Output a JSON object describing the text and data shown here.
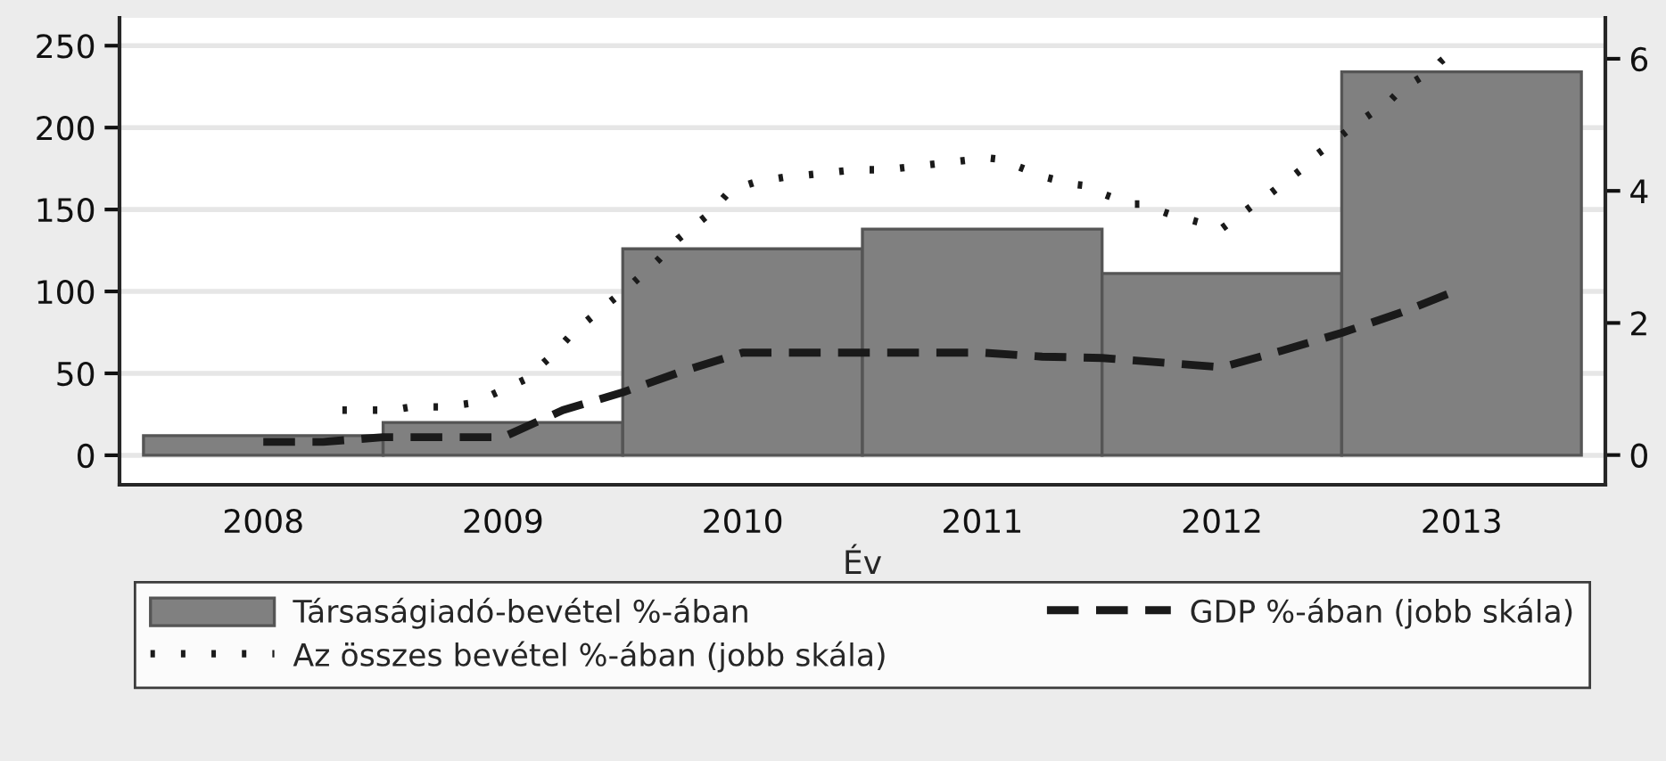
{
  "chart_data": {
    "type": "bar",
    "xlabel": "Év",
    "x": [
      2008,
      2009,
      2010,
      2011,
      2012,
      2013
    ],
    "xlim": [
      2007.4,
      2013.6
    ],
    "xticks": [
      2008,
      2009,
      2010,
      2011,
      2012,
      2013
    ],
    "ylim": [
      -18,
      267
    ],
    "yticks": [
      0,
      50,
      100,
      150,
      200,
      250
    ],
    "y2lim": [
      -0.45,
      6.62
    ],
    "y2ticks": [
      0,
      2,
      4,
      6
    ],
    "grid": "y",
    "legend": "bottom",
    "series": [
      {
        "name": "Társaságiadó-bevétel %-ában",
        "color": "#808080",
        "values": [
          12,
          20,
          126,
          138,
          111,
          234
        ]
      },
      {
        "name": "GDP %-ában (jobb skála)",
        "type": "line",
        "axis": "y2",
        "line_style": "dashed",
        "color": "#1a1a1a",
        "x": [
          2008.0,
          2008.25,
          2008.5,
          2008.75,
          2009.0,
          2009.25,
          2009.5,
          2009.75,
          2010.0,
          2010.25,
          2010.5,
          2010.75,
          2011.0,
          2011.25,
          2011.5,
          2011.75,
          2012.0,
          2012.25,
          2012.5,
          2012.75,
          2013.0
        ],
        "values": [
          0.2,
          0.2,
          0.27,
          0.27,
          0.27,
          0.68,
          0.95,
          1.27,
          1.55,
          1.55,
          1.55,
          1.55,
          1.55,
          1.49,
          1.47,
          1.4,
          1.33,
          1.58,
          1.85,
          2.16,
          2.52
        ]
      },
      {
        "name": "Az összes bevétel %-ában (jobb skála)",
        "type": "line",
        "axis": "y2",
        "line_style": "dotted",
        "color": "#1a1a1a",
        "x": [
          2008.33,
          2008.46,
          2008.54,
          2008.62,
          2008.75,
          2008.88,
          2009.09,
          2009.19,
          2009.24,
          2009.3,
          2009.43,
          2009.52,
          2009.65,
          2009.73,
          2009.86,
          2009.95,
          2010.06,
          2010.18,
          2010.32,
          2010.47,
          2010.6,
          2011.02,
          2011.07,
          2011.26,
          2011.38,
          2011.43,
          2011.46,
          2011.62,
          2011.66,
          2011.82,
          2011.87,
          2012.0,
          2012.14,
          2012.17,
          2012.33,
          2012.37,
          2012.43,
          2012.53,
          2012.59,
          2012.7,
          2012.75,
          2012.88,
          2012.91,
          2012.94
        ],
        "values": [
          0.68,
          0.68,
          0.68,
          0.73,
          0.73,
          0.79,
          1.14,
          1.46,
          1.65,
          1.88,
          2.27,
          2.53,
          2.96,
          3.27,
          3.65,
          4.01,
          4.14,
          4.21,
          4.26,
          4.32,
          4.32,
          4.5,
          4.48,
          4.21,
          4.1,
          4.08,
          4.01,
          3.8,
          3.8,
          3.6,
          3.56,
          3.43,
          3.81,
          3.87,
          4.32,
          4.48,
          4.64,
          4.93,
          5.09,
          5.36,
          5.54,
          5.83,
          5.95,
          6.04
        ]
      }
    ]
  }
}
